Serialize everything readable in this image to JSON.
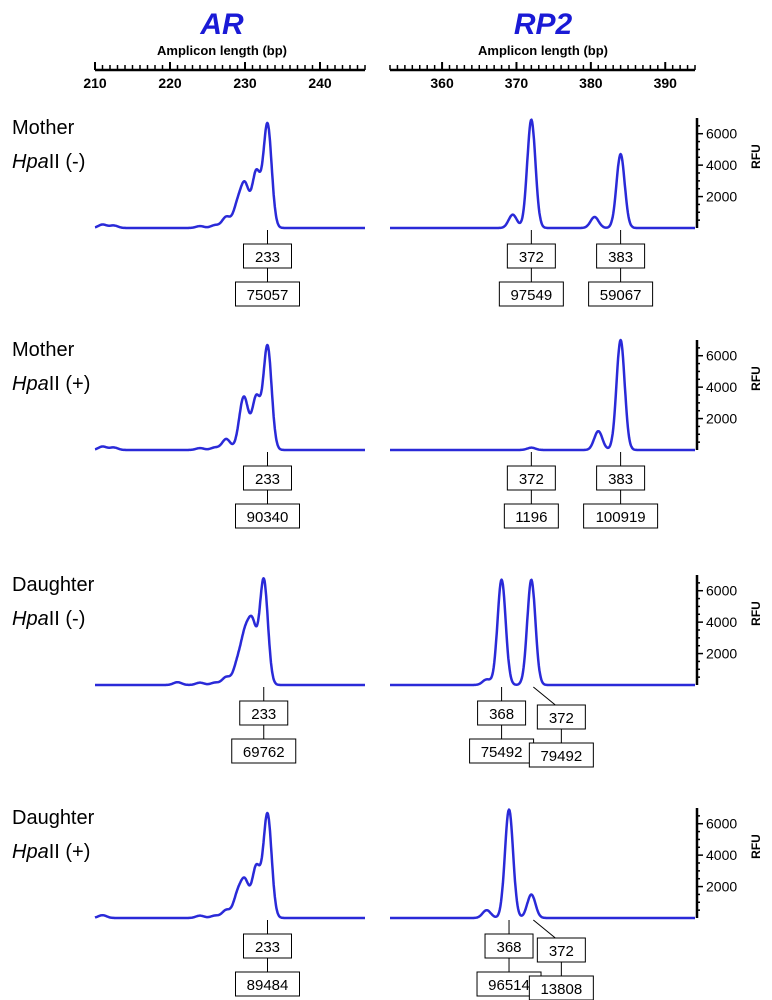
{
  "chart_data": {
    "type": "line",
    "panels_header": [
      {
        "gene": "AR",
        "xlabel": "Amplicon length (bp)",
        "ticks": [
          210,
          220,
          230,
          240
        ],
        "xlim": [
          210,
          246
        ]
      },
      {
        "gene": "RP2",
        "xlabel": "Amplicon length (bp)",
        "ticks": [
          360,
          370,
          380,
          390
        ],
        "xlim": [
          353,
          394
        ]
      }
    ],
    "y_axis": {
      "label": "RFU",
      "ticks": [
        2000,
        4000,
        6000
      ],
      "ylim": [
        0,
        7000
      ]
    },
    "rows": [
      {
        "sample": "Mother",
        "enzyme_prefix": "Hpa",
        "enzyme_suffix": "II (-)",
        "AR": {
          "peaks": [
            {
              "size": 211,
              "height": 220
            },
            {
              "size": 212.5,
              "height": 160
            },
            {
              "size": 224,
              "height": 120
            },
            {
              "size": 226,
              "height": 180
            },
            {
              "size": 227.5,
              "height": 700
            },
            {
              "size": 229,
              "height": 1400
            },
            {
              "size": 230,
              "height": 2600
            },
            {
              "size": 231.5,
              "height": 3500
            },
            {
              "size": 233,
              "height": 6600
            }
          ],
          "labels": [
            {
              "size": "233",
              "area": "75057"
            }
          ]
        },
        "RP2": {
          "peaks": [
            {
              "size": 369.5,
              "height": 850
            },
            {
              "size": 372,
              "height": 6900
            },
            {
              "size": 380.5,
              "height": 700
            },
            {
              "size": 384,
              "height": 4700
            }
          ],
          "labels": [
            {
              "size": "372",
              "area": "97549"
            },
            {
              "size": "383",
              "area": "59067"
            }
          ]
        }
      },
      {
        "sample": "Mother",
        "enzyme_prefix": "Hpa",
        "enzyme_suffix": "II (+)",
        "AR": {
          "peaks": [
            {
              "size": 211,
              "height": 220
            },
            {
              "size": 212.5,
              "height": 160
            },
            {
              "size": 224,
              "height": 120
            },
            {
              "size": 226,
              "height": 160
            },
            {
              "size": 227.5,
              "height": 700
            },
            {
              "size": 229.5,
              "height": 1300
            },
            {
              "size": 230,
              "height": 2400
            },
            {
              "size": 231.5,
              "height": 3300
            },
            {
              "size": 233,
              "height": 6600
            }
          ],
          "labels": [
            {
              "size": "233",
              "area": "90340"
            }
          ]
        },
        "RP2": {
          "peaks": [
            {
              "size": 372,
              "height": 150
            },
            {
              "size": 381,
              "height": 1200
            },
            {
              "size": 384,
              "height": 7000
            }
          ],
          "labels": [
            {
              "size": "372",
              "area": "1196"
            },
            {
              "size": "383",
              "area": "100919"
            }
          ]
        }
      },
      {
        "sample": "Daughter",
        "enzyme_prefix": "Hpa",
        "enzyme_suffix": "II (-)",
        "AR": {
          "peaks": [
            {
              "size": 221,
              "height": 180
            },
            {
              "size": 224,
              "height": 150
            },
            {
              "size": 226,
              "height": 150
            },
            {
              "size": 227.5,
              "height": 500
            },
            {
              "size": 229,
              "height": 1300
            },
            {
              "size": 230,
              "height": 2800
            },
            {
              "size": 231,
              "height": 3600
            },
            {
              "size": 232.5,
              "height": 6700
            }
          ],
          "labels": [
            {
              "size": "233",
              "area": "69762"
            }
          ]
        },
        "RP2": {
          "peaks": [
            {
              "size": 366,
              "height": 350
            },
            {
              "size": 368,
              "height": 6700
            },
            {
              "size": 372,
              "height": 6700
            }
          ],
          "labels": [
            {
              "size": "368",
              "area": "75492"
            },
            {
              "size": "372",
              "area": "79492"
            }
          ]
        }
      },
      {
        "sample": "Daughter",
        "enzyme_prefix": "Hpa",
        "enzyme_suffix": "II (+)",
        "AR": {
          "peaks": [
            {
              "size": 211,
              "height": 180
            },
            {
              "size": 224,
              "height": 150
            },
            {
              "size": 226,
              "height": 150
            },
            {
              "size": 227.5,
              "height": 500
            },
            {
              "size": 229,
              "height": 1400
            },
            {
              "size": 230,
              "height": 2200
            },
            {
              "size": 231.5,
              "height": 3200
            },
            {
              "size": 233,
              "height": 6600
            }
          ],
          "labels": [
            {
              "size": "233",
              "area": "89484"
            }
          ]
        },
        "RP2": {
          "peaks": [
            {
              "size": 366,
              "height": 500
            },
            {
              "size": 369,
              "height": 6900
            },
            {
              "size": 372,
              "height": 1500
            }
          ],
          "labels": [
            {
              "size": "368",
              "area": "96514"
            },
            {
              "size": "372",
              "area": "13808"
            }
          ]
        }
      }
    ]
  }
}
